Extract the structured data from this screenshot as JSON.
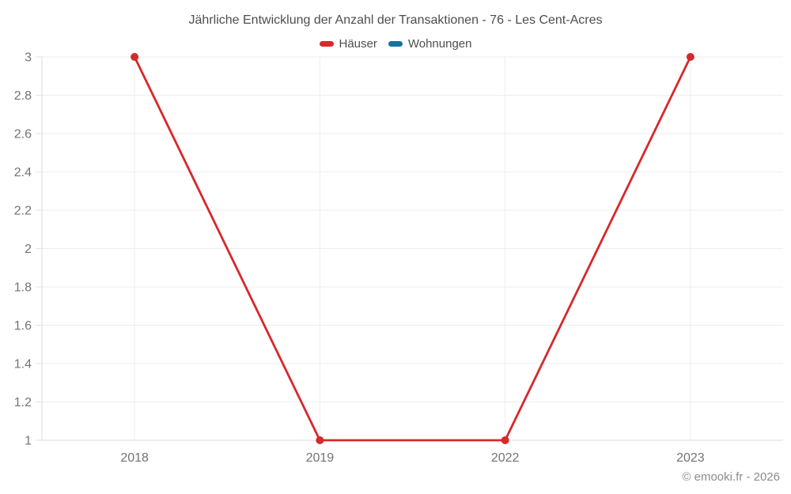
{
  "header": {
    "title": "Jährliche Entwicklung der Anzahl der Transaktionen - 76 - Les Cent-Acres"
  },
  "legend": {
    "items": [
      {
        "label": "Häuser",
        "color": "#d7282c"
      },
      {
        "label": "Wohnungen",
        "color": "#17719f"
      }
    ]
  },
  "footer": {
    "credit": "© emooki.fr - 2026"
  },
  "chart_data": {
    "type": "line",
    "title": "Jährliche Entwicklung der Anzahl der Transaktionen - 76 - Les Cent-Acres",
    "x": [
      "2018",
      "2019",
      "2022",
      "2023"
    ],
    "series": [
      {
        "name": "Häuser",
        "color": "#d7282c",
        "marker": "circle",
        "values": [
          3,
          1,
          1,
          3
        ]
      },
      {
        "name": "Wohnungen",
        "color": "#17719f",
        "marker": "circle",
        "values": []
      }
    ],
    "xlabel": "",
    "ylabel": "",
    "ylim": [
      1,
      3
    ],
    "yticks": [
      1,
      1.2,
      1.4,
      1.6,
      1.8,
      2,
      2.2,
      2.4,
      2.6,
      2.8,
      3
    ],
    "grid": true,
    "legend_position": "top",
    "style": {
      "grid_color": "#ededed",
      "baseline_color": "#d9d9d9",
      "axis_color": "#dcdcdc",
      "tick_color": "#e3e3e3",
      "tick_text_color": "#737373",
      "line_width": 2.8,
      "marker_radius": 5
    }
  }
}
